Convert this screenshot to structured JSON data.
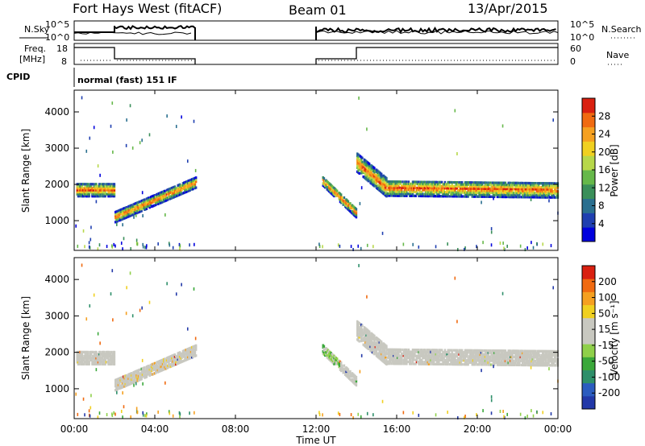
{
  "header": {
    "station": "Fort Hays West (fitACF)",
    "beam": "Beam 01",
    "date": "13/Apr/2015"
  },
  "strips": {
    "nsky_label": "N.Sky",
    "nsearch_label": "N.Search",
    "freq_label_1": "Freq.",
    "freq_label_2": "[MHz]",
    "nave_label": "Nave",
    "cpid_label": "CPID",
    "cpid_text": "normal (fast) 151 IF",
    "noise_left_ticks": [
      "10^5",
      "10^0"
    ],
    "noise_right_ticks": [
      "10^5",
      "10^0"
    ],
    "freq_left_ticks": [
      "18",
      "8"
    ],
    "freq_right_ticks": [
      "60",
      "0"
    ]
  },
  "colorbars": {
    "power": {
      "label": "Power [dB]",
      "ticks": [
        "28",
        "24",
        "20",
        "16",
        "12",
        "8",
        "4"
      ],
      "colors": [
        "#0000dd",
        "#1f3fb0",
        "#2a6f8f",
        "#3a8f5a",
        "#66b84a",
        "#b7d84a",
        "#f0d020",
        "#f5a020",
        "#f06a10",
        "#d92010"
      ]
    },
    "velocity": {
      "label": "Velocity [m s⁻¹]",
      "ticks": [
        "200",
        "100",
        "50",
        "15",
        "-15",
        "-50",
        "-100",
        "-200"
      ],
      "colors": [
        "#2238a8",
        "#2b5cbf",
        "#2e8f6a",
        "#3aa83a",
        "#8fd04a",
        "#c8c8c0",
        "#c8c8c0",
        "#f0d020",
        "#f5a020",
        "#f06a10",
        "#d92010"
      ]
    }
  },
  "chart_data": {
    "type": "heatmap",
    "xlabel": "Time UT",
    "x_ticks": [
      "00:00",
      "04:00",
      "08:00",
      "12:00",
      "16:00",
      "20:00",
      "00:00"
    ],
    "xlim_hours": [
      0,
      24
    ],
    "ylabel": "Slant Range [km]",
    "y_ticks": [
      1000,
      2000,
      3000,
      4000
    ],
    "ylim_km": [
      180,
      4600
    ],
    "panels": [
      {
        "name": "Power",
        "colorbar_label": "Power [dB]"
      },
      {
        "name": "Velocity",
        "colorbar_label": "Velocity [m s⁻¹]"
      }
    ],
    "echo_bands": [
      {
        "t_start": 0.1,
        "t_end": 2.0,
        "center_start": 1850,
        "center_end": 1850,
        "width": 350
      },
      {
        "t_start": 2.0,
        "t_end": 6.0,
        "center_start": 1100,
        "center_end": 2050,
        "width": 280
      },
      {
        "t_start": 12.3,
        "t_end": 14.0,
        "center_start": 2100,
        "center_end": 1200,
        "width": 260
      },
      {
        "t_start": 14.0,
        "t_end": 15.5,
        "center_start": 2600,
        "center_end": 1900,
        "width": 500
      },
      {
        "t_start": 15.5,
        "t_end": 24.0,
        "center_start": 1900,
        "center_end": 1850,
        "width": 420
      }
    ]
  }
}
